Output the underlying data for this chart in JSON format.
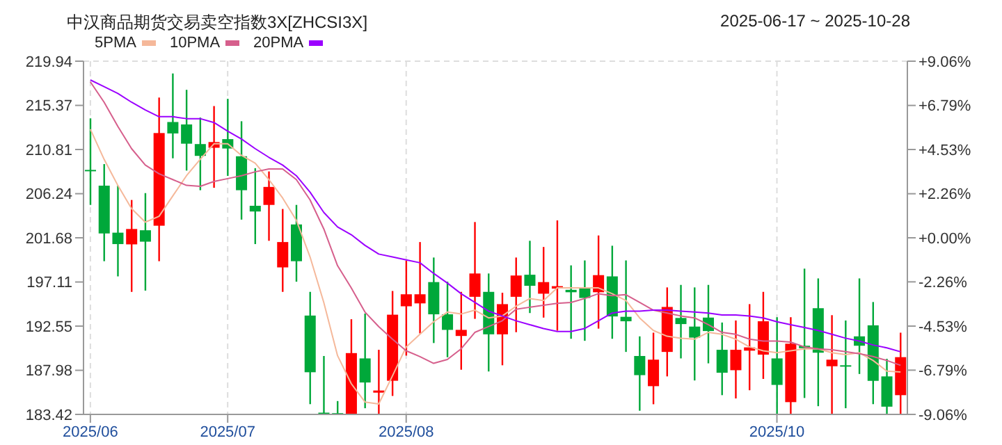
{
  "chart_data": {
    "type": "candlestick",
    "title": "中汉商品期货交易卖空指数3X[ZHCSI3X]",
    "subtitle": "2025-06-17 ~ 2025-10-28",
    "categories": [
      "2025/06",
      null,
      null,
      null,
      null,
      null,
      null,
      null,
      null,
      null,
      "2025/07",
      null,
      null,
      null,
      null,
      null,
      null,
      null,
      null,
      null,
      null,
      null,
      null,
      "2025/08",
      null,
      null,
      null,
      null,
      null,
      null,
      null,
      null,
      null,
      null,
      null,
      null,
      null,
      null,
      null,
      null,
      null,
      null,
      null,
      null,
      null,
      null,
      null,
      null,
      null,
      null,
      "2025/10",
      null,
      null,
      null,
      null,
      null,
      null,
      null,
      null,
      null
    ],
    "ohlc": [
      [
        208.7,
        214.03,
        205.08,
        208.6
      ],
      [
        207.07,
        209.3,
        199.26,
        202.13
      ],
      [
        202.21,
        207.07,
        197.69,
        201.03
      ],
      [
        201.0,
        205.59,
        196.09,
        202.59
      ],
      [
        202.46,
        206.3,
        196.22,
        201.28
      ],
      [
        202.93,
        216.18,
        199.26,
        212.51
      ],
      [
        213.65,
        218.67,
        209.9,
        212.47
      ],
      [
        213.4,
        216.98,
        208.63,
        211.41
      ],
      [
        211.37,
        214.11,
        206.6,
        210.15
      ],
      [
        210.99,
        215.3,
        206.85,
        211.58
      ],
      [
        211.88,
        216.05,
        208.08,
        210.91
      ],
      [
        210.11,
        213.73,
        203.56,
        206.6
      ],
      [
        204.99,
        208.88,
        201.03,
        204.4
      ],
      [
        205.08,
        208.54,
        201.37,
        206.94
      ],
      [
        198.62,
        204.66,
        196.09,
        201.24
      ],
      [
        203.06,
        205.08,
        197.14,
        199.26
      ],
      [
        193.64,
        196.09,
        184.48,
        187.78
      ],
      [
        183.6,
        189.46,
        183.42,
        183.5
      ],
      [
        183.55,
        184.8,
        183.42,
        183.47
      ],
      [
        183.42,
        193.26,
        183.42,
        189.76
      ],
      [
        189.21,
        193.85,
        184.06,
        186.72
      ],
      [
        185.67,
        190.1,
        183.42,
        185.89
      ],
      [
        186.9,
        196.18,
        185.33,
        193.73
      ],
      [
        194.6,
        199.3,
        189.5,
        195.84
      ],
      [
        194.9,
        201.24,
        191.79,
        195.84
      ],
      [
        197.1,
        199.64,
        190.8,
        193.77
      ],
      [
        193.77,
        197.14,
        189.33,
        192.16
      ],
      [
        191.53,
        196.09,
        188.04,
        192.16
      ],
      [
        195.58,
        203.31,
        193.3,
        197.99
      ],
      [
        196.09,
        197.99,
        187.86,
        191.7
      ],
      [
        191.7,
        196.0,
        188.5,
        194.82
      ],
      [
        195.58,
        199.64,
        191.92,
        197.78
      ],
      [
        197.86,
        201.37,
        193.9,
        196.72
      ],
      [
        195.9,
        200.73,
        193.43,
        197.1
      ],
      [
        196.43,
        203.48,
        192.08,
        196.68
      ],
      [
        196.3,
        198.83,
        191.24,
        196.05
      ],
      [
        196.47,
        199.34,
        191.03,
        195.46
      ],
      [
        196.05,
        201.92,
        192.29,
        197.82
      ],
      [
        197.69,
        200.86,
        191.24,
        193.55
      ],
      [
        193.51,
        199.34,
        189.88,
        193.05
      ],
      [
        189.46,
        191.49,
        183.8,
        187.48
      ],
      [
        186.34,
        191.87,
        184.47,
        189.08
      ],
      [
        189.88,
        196.55,
        187.35,
        194.53
      ],
      [
        193.39,
        196.81,
        189.21,
        192.76
      ],
      [
        192.5,
        196.55,
        186.93,
        191.36
      ],
      [
        193.43,
        196.81,
        188.7,
        192.04
      ],
      [
        190.1,
        192.92,
        185.41,
        187.73
      ],
      [
        187.99,
        193.13,
        185.07,
        190.1
      ],
      [
        190.01,
        194.82,
        185.92,
        190.35
      ],
      [
        189.6,
        196.09,
        187.09,
        193.05
      ],
      [
        189.21,
        193.47,
        183.42,
        186.47
      ],
      [
        184.69,
        193.47,
        183.42,
        190.73
      ],
      [
        190.52,
        198.49,
        185.12,
        190.27
      ],
      [
        194.4,
        197.48,
        184.27,
        189.8
      ],
      [
        188.4,
        193.68,
        183.42,
        189.08
      ],
      [
        188.5,
        193.13,
        184.06,
        188.4
      ],
      [
        191.49,
        197.48,
        187.6,
        190.52
      ],
      [
        192.63,
        195.04,
        184.48,
        186.89
      ],
      [
        187.35,
        189.17,
        183.42,
        184.22
      ],
      [
        185.41,
        191.87,
        183.42,
        189.34
      ]
    ],
    "colors": [
      "#00a83a",
      "#00a83a",
      "#00a83a",
      "#ff0000",
      "#00a83a",
      "#ff0000",
      "#00a83a",
      "#00a83a",
      "#00a83a",
      "#ff0000",
      "#00a83a",
      "#00a83a",
      "#00a83a",
      "#ff0000",
      "#ff0000",
      "#00a83a",
      "#00a83a",
      "#00a83a",
      "#00a83a",
      "#ff0000",
      "#00a83a",
      "#ff0000",
      "#ff0000",
      "#ff0000",
      "#ff0000",
      "#00a83a",
      "#00a83a",
      "#ff0000",
      "#ff0000",
      "#00a83a",
      "#ff0000",
      "#ff0000",
      "#00a83a",
      "#ff0000",
      "#ff0000",
      "#00a83a",
      "#00a83a",
      "#ff0000",
      "#00a83a",
      "#00a83a",
      "#00a83a",
      "#ff0000",
      "#ff0000",
      "#00a83a",
      "#00a83a",
      "#00a83a",
      "#00a83a",
      "#ff0000",
      "#ff0000",
      "#ff0000",
      "#00a83a",
      "#ff0000",
      "#00a83a",
      "#00a83a",
      "#ff0000",
      "#00a83a",
      "#00a83a",
      "#00a83a",
      "#00a83a",
      "#ff0000"
    ],
    "series": [
      {
        "name": "5PMA",
        "type": "line",
        "color": "#f5b89a",
        "values": [
          212.9,
          209.8,
          207.1,
          204.7,
          203.3,
          203.9,
          206.0,
          208.1,
          209.8,
          211.4,
          211.4,
          210.2,
          209.4,
          207.7,
          205.8,
          203.5,
          199.7,
          195.0,
          189.5,
          186.6,
          184.7,
          184.5,
          187.4,
          190.4,
          191.7,
          193.0,
          194.0,
          193.8,
          194.2,
          193.4,
          193.6,
          194.6,
          195.4,
          195.2,
          196.5,
          196.5,
          196.5,
          196.5,
          195.9,
          195.2,
          193.4,
          192.1,
          191.5,
          191.3,
          191.2,
          191.9,
          191.7,
          191.2,
          190.4,
          190.0,
          189.8,
          190.0,
          190.2,
          190.2,
          189.8,
          189.6,
          189.8,
          189.0,
          187.9,
          187.8
        ]
      },
      {
        "name": "10PMA",
        "type": "line",
        "color": "#d65f8c",
        "values": [
          217.8,
          215.7,
          213.2,
          210.9,
          209.2,
          208.3,
          207.7,
          207.1,
          207.0,
          207.5,
          207.8,
          208.1,
          208.5,
          208.8,
          208.8,
          207.7,
          205.6,
          202.6,
          198.8,
          196.5,
          194.0,
          192.5,
          191.2,
          190.0,
          189.4,
          188.7,
          189.1,
          190.2,
          191.9,
          192.5,
          193.1,
          194.3,
          194.5,
          194.7,
          194.9,
          195.0,
          195.4,
          195.9,
          195.7,
          195.8,
          195.0,
          194.2,
          193.9,
          193.6,
          193.4,
          192.7,
          191.9,
          191.7,
          191.2,
          191.0,
          191.0,
          190.9,
          190.4,
          190.2,
          190.1,
          189.9,
          189.7,
          189.4,
          189.0,
          188.5
        ]
      },
      {
        "name": "20PMA",
        "type": "line",
        "color": "#9b00ff",
        "values": [
          218.0,
          217.3,
          216.6,
          215.7,
          214.9,
          214.2,
          214.2,
          214.0,
          214.0,
          213.6,
          212.7,
          211.9,
          210.9,
          210.0,
          209.2,
          208.1,
          206.4,
          204.3,
          202.8,
          202.0,
          200.9,
          200.0,
          199.7,
          199.4,
          199.1,
          198.0,
          197.0,
          195.9,
          195.0,
          194.1,
          193.6,
          193.1,
          192.7,
          192.3,
          192.0,
          192.0,
          192.3,
          193.1,
          193.9,
          194.1,
          194.1,
          194.2,
          194.2,
          194.1,
          194.0,
          193.9,
          193.7,
          193.7,
          193.6,
          193.4,
          193.0,
          192.7,
          192.4,
          192.1,
          191.7,
          191.3,
          191.0,
          190.6,
          190.3,
          189.9
        ]
      }
    ],
    "ylim": [
      183.42,
      219.94
    ],
    "yticks": [
      183.42,
      187.98,
      192.55,
      197.11,
      201.68,
      206.24,
      210.81,
      215.37,
      219.94
    ],
    "y2lim": [
      -9.06,
      9.06
    ],
    "y2ticks": [
      {
        "value": -9.06,
        "label": "-9.06%"
      },
      {
        "value": -6.79,
        "label": "-6.79%"
      },
      {
        "value": -4.53,
        "label": "-4.53%"
      },
      {
        "value": -2.26,
        "label": "-2.26%"
      },
      {
        "value": 0,
        "label": "+0.00%"
      },
      {
        "value": 2.26,
        "label": "+2.26%"
      },
      {
        "value": 4.53,
        "label": "+4.53%"
      },
      {
        "value": 6.79,
        "label": "+6.79%"
      },
      {
        "value": 9.06,
        "label": "+9.06%"
      }
    ],
    "grid": true,
    "legend": "top left"
  }
}
